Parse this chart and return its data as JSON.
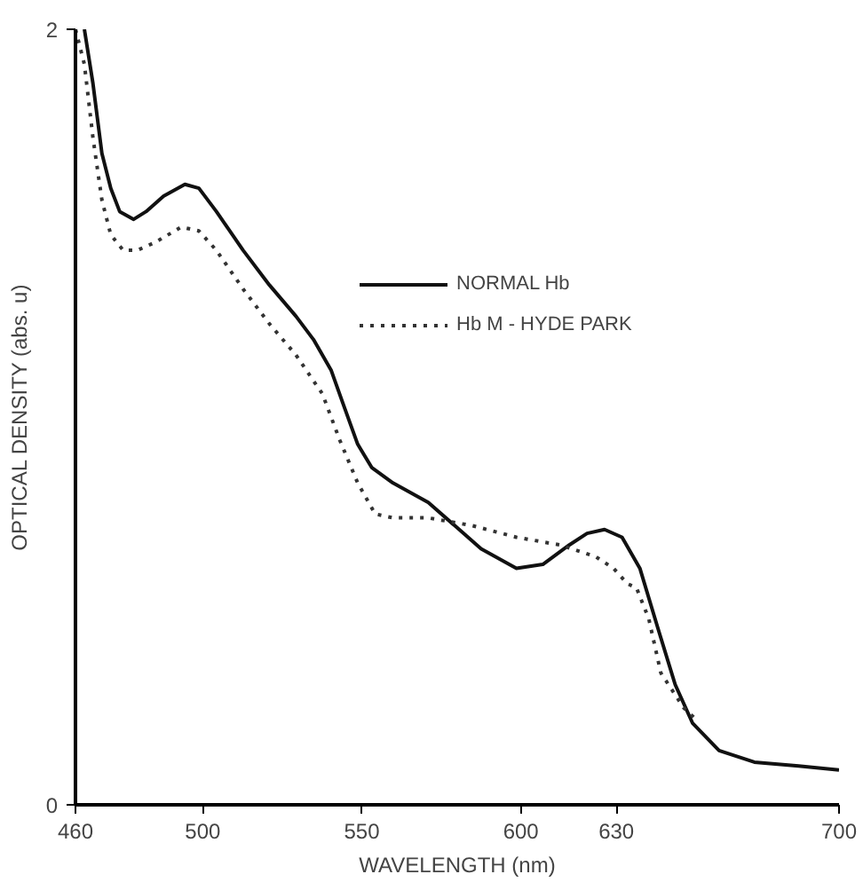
{
  "chart_data": {
    "type": "line",
    "xlabel": "WAVELENGTH (nm)",
    "ylabel": "OPTICAL DENSITY (abs. u)",
    "xlim": [
      460,
      700
    ],
    "xticks": [
      460,
      500,
      550,
      600,
      630,
      700
    ],
    "ylim": [
      0,
      2
    ],
    "yticks": [
      0,
      2
    ],
    "grid": false,
    "legend": "top right",
    "series": [
      {
        "name": "NORMAL Hb",
        "color": "#111111",
        "line_style": "solid",
        "x": [
          462.8,
          465.5,
          468.3,
          471.1,
          473.9,
          478.3,
          482.2,
          487.7,
          494.4,
          498.8,
          504.3,
          512.7,
          521.0,
          529.3,
          534.8,
          540.4,
          544.3,
          548.7,
          553.1,
          559.8,
          570.9,
          579.2,
          587.5,
          598.6,
          606.9,
          615.2,
          620.8,
          626.3,
          631.8,
          637.4,
          642.9,
          648.5,
          654.0,
          662.3,
          673.4,
          687.3,
          700
        ],
        "values": [
          2.0,
          1.86,
          1.68,
          1.59,
          1.53,
          1.51,
          1.53,
          1.57,
          1.6,
          1.59,
          1.53,
          1.43,
          1.34,
          1.26,
          1.2,
          1.12,
          1.03,
          0.93,
          0.87,
          0.83,
          0.78,
          0.72,
          0.66,
          0.61,
          0.62,
          0.67,
          0.7,
          0.71,
          0.69,
          0.61,
          0.46,
          0.31,
          0.21,
          0.14,
          0.11,
          0.1,
          0.09
        ]
      },
      {
        "name": "Hb M - HYDE PARK",
        "color": "#333333",
        "line_style": "dotted",
        "x": [
          460,
          462.8,
          465.5,
          468.3,
          471.1,
          475.0,
          479.4,
          484.9,
          493.3,
          498.8,
          504.3,
          512.7,
          521.0,
          529.3,
          537.6,
          543.1,
          548.7,
          554.2,
          559.8,
          570.9,
          584.7,
          598.6,
          612.4,
          623.5,
          629.1,
          633.5,
          636.3,
          640.2,
          644.0,
          651.2,
          655.1
        ],
        "values": [
          2.0,
          1.91,
          1.72,
          1.56,
          1.47,
          1.43,
          1.43,
          1.45,
          1.49,
          1.48,
          1.43,
          1.33,
          1.24,
          1.16,
          1.06,
          0.94,
          0.83,
          0.75,
          0.74,
          0.74,
          0.72,
          0.69,
          0.67,
          0.64,
          0.61,
          0.57,
          0.56,
          0.48,
          0.34,
          0.25,
          0.22
        ]
      }
    ]
  }
}
